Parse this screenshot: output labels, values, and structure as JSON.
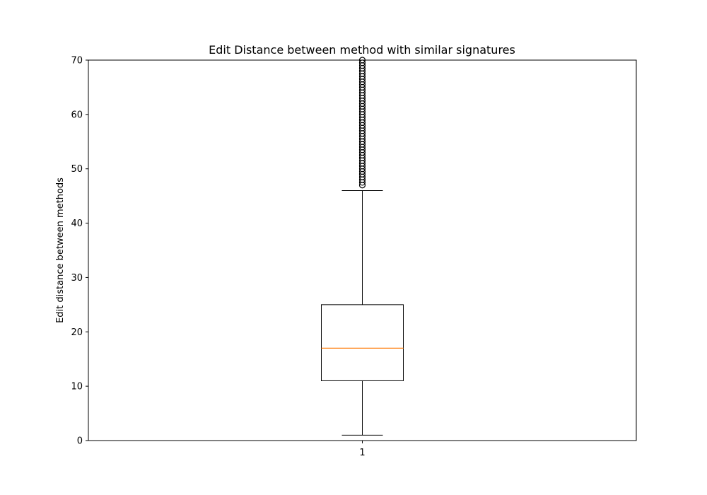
{
  "chart_data": {
    "type": "box",
    "title": "Edit Distance between method with similar signatures",
    "xlabel": "",
    "ylabel": "Edit distance between methods",
    "ylim": [
      0,
      70
    ],
    "yticks": [
      0,
      10,
      20,
      30,
      40,
      50,
      60,
      70
    ],
    "categories": [
      "1"
    ],
    "box": {
      "whisker_low": 1,
      "q1": 11,
      "median": 17,
      "q3": 25,
      "whisker_high": 46
    },
    "outliers": [
      47,
      48,
      49,
      50,
      51,
      52,
      53,
      54,
      55,
      56,
      57,
      58,
      59,
      60,
      61,
      62,
      63,
      64,
      65,
      66,
      67,
      68,
      69,
      70
    ],
    "grid": false,
    "colors": {
      "median": "#ff7f0e",
      "box": "#000000"
    }
  }
}
